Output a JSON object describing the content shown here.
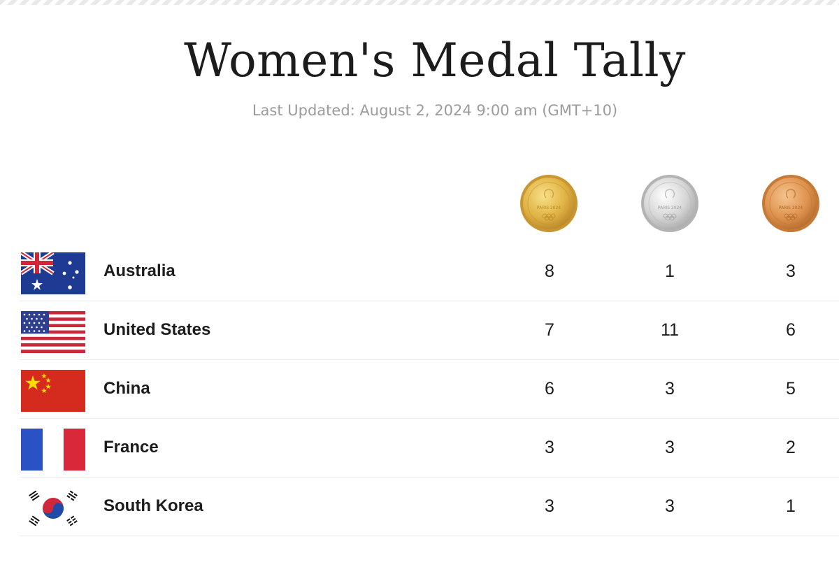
{
  "header": {
    "title": "Women's Medal Tally",
    "last_updated": "Last Updated: August 2, 2024 9:00 am (GMT+10)"
  },
  "medals": [
    {
      "type": "gold",
      "icon": "gold-medal-icon",
      "inscription": "PARIS 2024",
      "color": "#d9a93a"
    },
    {
      "type": "silver",
      "icon": "silver-medal-icon",
      "inscription": "PARIS 2024",
      "color": "#c9c9c9"
    },
    {
      "type": "bronze",
      "icon": "bronze-medal-icon",
      "inscription": "PARIS 2024",
      "color": "#d9904e"
    }
  ],
  "countries": [
    {
      "name": "Australia",
      "flag": "australia-flag-icon",
      "gold": "8",
      "silver": "1",
      "bronze": "3"
    },
    {
      "name": "United States",
      "flag": "united-states-flag-icon",
      "gold": "7",
      "silver": "11",
      "bronze": "6"
    },
    {
      "name": "China",
      "flag": "china-flag-icon",
      "gold": "6",
      "silver": "3",
      "bronze": "5"
    },
    {
      "name": "France",
      "flag": "france-flag-icon",
      "gold": "3",
      "silver": "3",
      "bronze": "2"
    },
    {
      "name": "South Korea",
      "flag": "south-korea-flag-icon",
      "gold": "3",
      "silver": "3",
      "bronze": "1"
    }
  ]
}
